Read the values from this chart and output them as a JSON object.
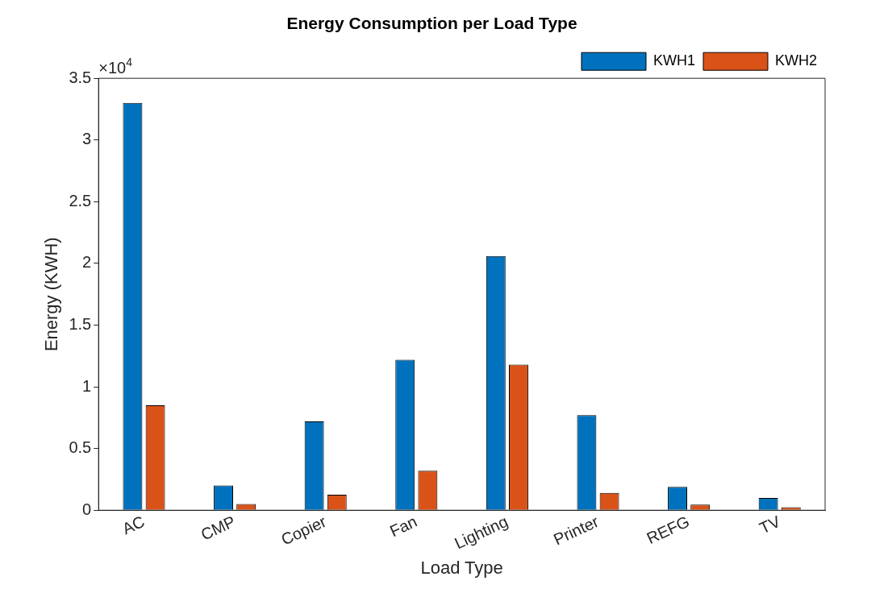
{
  "chart_data": {
    "type": "bar",
    "title": "Energy Consumption per Load Type",
    "xlabel": "Load Type",
    "ylabel": "Energy (KWH)",
    "annotations": [
      "×10$^{4}$"
    ],
    "categories": [
      "AC",
      "CMP",
      "Copier",
      "Fan",
      "Lighting",
      "Printer",
      "REFG",
      "TV"
    ],
    "series": [
      {
        "name": "KWH1",
        "color": "#0072bd",
        "values": [
          3.3,
          0.2,
          0.72,
          1.22,
          2.06,
          0.77,
          0.19,
          0.1
        ]
      },
      {
        "name": "KWH2",
        "color": "#d95319",
        "values": [
          0.85,
          0.05,
          0.125,
          0.32,
          1.18,
          0.14,
          0.045,
          0.025
        ]
      }
    ],
    "ylim": [
      0,
      3.5
    ],
    "yticks": [
      0,
      0.5,
      1,
      1.5,
      2,
      2.5,
      3,
      3.5
    ],
    "grid": false,
    "legend": "top right"
  }
}
